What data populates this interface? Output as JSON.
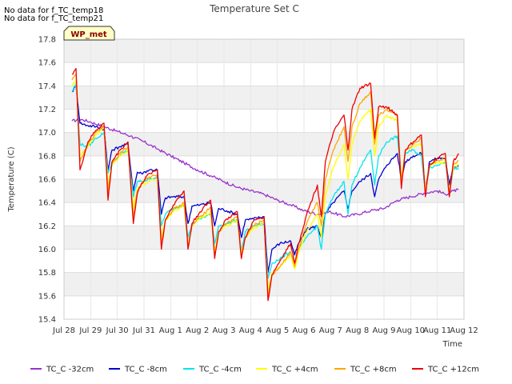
{
  "notes": [
    "No data for f_TC_temp18",
    "No data for f_TC_temp21"
  ],
  "chart_data": {
    "type": "line",
    "title": "Temperature Set C",
    "xlabel": "Time",
    "ylabel": "Temperature (C)",
    "badge": "WP_met",
    "ylim": [
      15.4,
      17.8
    ],
    "yticks": [
      15.4,
      15.6,
      15.8,
      16.0,
      16.2,
      16.4,
      16.6,
      16.8,
      17.0,
      17.2,
      17.4,
      17.6,
      17.8
    ],
    "ytick_labels": [
      "15.4",
      "15.6",
      "15.8",
      "16.0",
      "16.2",
      "16.4",
      "16.6",
      "16.8",
      "17.0",
      "17.2",
      "17.4",
      "17.6",
      "17.8"
    ],
    "xlim": [
      0,
      15
    ],
    "xticks": [
      0,
      1,
      2,
      3,
      4,
      5,
      6,
      7,
      8,
      9,
      10,
      11,
      12,
      13,
      14,
      15
    ],
    "xtick_labels": [
      "Jul 28",
      "Jul 29",
      "Jul 30",
      "Jul 31",
      "Aug 1",
      "Aug 2",
      "Aug 3",
      "Aug 4",
      "Aug 5",
      "Aug 6",
      "Aug 7",
      "Aug 8",
      "Aug 9",
      "Aug 10",
      "Aug 11",
      "Aug 12"
    ],
    "grid": true,
    "legend_position": "bottom",
    "series": [
      {
        "name": "TC_C -32cm",
        "color": "#9932cc",
        "x": [
          0.3,
          0.7,
          1.0,
          1.5,
          2.0,
          2.5,
          3.0,
          3.5,
          4.0,
          4.5,
          5.0,
          5.5,
          6.0,
          6.5,
          7.0,
          7.5,
          8.0,
          8.5,
          9.0,
          9.5,
          10.0,
          10.5,
          11.0,
          11.5,
          12.0,
          12.5,
          13.0,
          13.5,
          14.0,
          14.3,
          14.6,
          14.8
        ],
        "y": [
          17.1,
          17.11,
          17.09,
          17.05,
          17.01,
          16.97,
          16.92,
          16.86,
          16.8,
          16.74,
          16.68,
          16.63,
          16.58,
          16.53,
          16.5,
          16.47,
          16.42,
          16.38,
          16.33,
          16.3,
          16.32,
          16.28,
          16.3,
          16.33,
          16.35,
          16.42,
          16.45,
          16.48,
          16.5,
          16.47,
          16.5,
          16.51
        ]
      },
      {
        "name": "TC_C -8cm",
        "color": "#0000cd",
        "x": [
          0.3,
          0.45,
          0.6,
          0.9,
          1.2,
          1.5,
          1.65,
          1.8,
          2.1,
          2.4,
          2.6,
          2.75,
          2.9,
          3.2,
          3.5,
          3.65,
          3.8,
          4.1,
          4.5,
          4.65,
          4.8,
          5.1,
          5.5,
          5.65,
          5.8,
          6.1,
          6.5,
          6.65,
          6.8,
          7.1,
          7.5,
          7.65,
          7.8,
          8.1,
          8.5,
          8.65,
          8.8,
          9.1,
          9.5,
          9.65,
          9.8,
          10.1,
          10.5,
          10.65,
          10.8,
          11.1,
          11.5,
          11.65,
          11.8,
          12.1,
          12.5,
          12.65,
          12.8,
          13.1,
          13.4,
          13.55,
          13.7,
          14.0,
          14.3,
          14.45,
          14.6,
          14.8
        ],
        "y": [
          17.35,
          17.4,
          17.08,
          17.06,
          17.05,
          17.03,
          16.68,
          16.85,
          16.88,
          16.9,
          16.5,
          16.66,
          16.65,
          16.68,
          16.68,
          16.3,
          16.44,
          16.45,
          16.45,
          16.22,
          16.37,
          16.38,
          16.4,
          16.2,
          16.35,
          16.33,
          16.3,
          16.1,
          16.25,
          16.26,
          16.28,
          15.8,
          16.0,
          16.05,
          16.07,
          15.95,
          16.05,
          16.17,
          16.2,
          16.1,
          16.3,
          16.4,
          16.5,
          16.35,
          16.5,
          16.58,
          16.65,
          16.45,
          16.6,
          16.72,
          16.82,
          16.6,
          16.75,
          16.8,
          16.82,
          16.5,
          16.75,
          16.78,
          16.78,
          16.55,
          16.7,
          16.72
        ]
      },
      {
        "name": "TC_C -4cm",
        "color": "#00e5ee",
        "x": [
          0.3,
          0.45,
          0.6,
          0.9,
          1.2,
          1.5,
          1.65,
          1.8,
          2.1,
          2.4,
          2.6,
          2.75,
          2.9,
          3.2,
          3.5,
          3.65,
          3.8,
          4.1,
          4.5,
          4.65,
          4.8,
          5.1,
          5.5,
          5.65,
          5.8,
          6.1,
          6.5,
          6.65,
          6.8,
          7.1,
          7.5,
          7.65,
          7.8,
          8.1,
          8.5,
          8.65,
          8.8,
          9.1,
          9.5,
          9.65,
          9.8,
          10.1,
          10.5,
          10.65,
          10.8,
          11.1,
          11.5,
          11.65,
          11.8,
          12.1,
          12.5,
          12.65,
          12.8,
          13.1,
          13.4,
          13.55,
          13.7,
          14.0,
          14.3,
          14.45,
          14.6,
          14.8
        ],
        "y": [
          17.35,
          17.42,
          16.9,
          16.88,
          16.95,
          17.0,
          16.65,
          16.75,
          16.8,
          16.85,
          16.45,
          16.58,
          16.58,
          16.6,
          16.62,
          16.2,
          16.3,
          16.35,
          16.38,
          16.1,
          16.22,
          16.26,
          16.3,
          16.05,
          16.2,
          16.22,
          16.25,
          15.98,
          16.15,
          16.2,
          16.22,
          15.75,
          15.88,
          15.92,
          15.98,
          15.88,
          16.0,
          16.1,
          16.2,
          16.0,
          16.3,
          16.45,
          16.58,
          16.3,
          16.55,
          16.7,
          16.85,
          16.55,
          16.8,
          16.92,
          16.97,
          16.6,
          16.82,
          16.85,
          16.8,
          16.5,
          16.7,
          16.72,
          16.75,
          16.5,
          16.68,
          16.7
        ]
      },
      {
        "name": "TC_C +4cm",
        "color": "#ffff00",
        "x": [
          0.3,
          0.45,
          0.6,
          0.9,
          1.2,
          1.5,
          1.65,
          1.8,
          2.1,
          2.4,
          2.6,
          2.75,
          2.9,
          3.2,
          3.5,
          3.65,
          3.8,
          4.1,
          4.5,
          4.65,
          4.8,
          5.1,
          5.5,
          5.65,
          5.8,
          6.1,
          6.5,
          6.65,
          6.8,
          7.1,
          7.5,
          7.65,
          7.8,
          8.1,
          8.5,
          8.65,
          8.8,
          9.1,
          9.5,
          9.65,
          9.8,
          10.1,
          10.5,
          10.65,
          10.8,
          11.1,
          11.5,
          11.65,
          11.8,
          12.1,
          12.5,
          12.65,
          12.8,
          13.1,
          13.4,
          13.55,
          13.7,
          14.0,
          14.3,
          14.45,
          14.6,
          14.8
        ],
        "y": [
          17.4,
          17.45,
          16.8,
          16.88,
          16.98,
          17.05,
          16.55,
          16.72,
          16.8,
          16.85,
          16.35,
          16.52,
          16.55,
          16.58,
          16.6,
          16.1,
          16.25,
          16.32,
          16.38,
          16.05,
          16.2,
          16.26,
          16.32,
          15.98,
          16.15,
          16.2,
          16.25,
          15.95,
          16.1,
          16.18,
          16.22,
          15.65,
          15.8,
          15.85,
          15.95,
          15.83,
          15.98,
          16.15,
          16.3,
          16.1,
          16.45,
          16.7,
          16.9,
          16.6,
          16.9,
          17.1,
          17.2,
          16.8,
          17.05,
          17.15,
          17.1,
          16.6,
          16.85,
          16.88,
          16.9,
          16.5,
          16.72,
          16.74,
          16.75,
          16.5,
          16.7,
          16.72
        ]
      },
      {
        "name": "TC_C +8cm",
        "color": "#ffa500",
        "x": [
          0.3,
          0.45,
          0.6,
          0.9,
          1.2,
          1.5,
          1.65,
          1.8,
          2.1,
          2.4,
          2.6,
          2.75,
          2.9,
          3.2,
          3.5,
          3.65,
          3.8,
          4.1,
          4.5,
          4.65,
          4.8,
          5.1,
          5.5,
          5.65,
          5.8,
          6.1,
          6.5,
          6.65,
          6.8,
          7.1,
          7.5,
          7.65,
          7.8,
          8.1,
          8.5,
          8.65,
          8.8,
          9.1,
          9.5,
          9.65,
          9.8,
          10.1,
          10.5,
          10.65,
          10.8,
          11.1,
          11.5,
          11.65,
          11.8,
          12.1,
          12.5,
          12.65,
          12.8,
          13.1,
          13.4,
          13.55,
          13.7,
          14.0,
          14.3,
          14.45,
          14.6,
          14.8
        ],
        "y": [
          17.45,
          17.5,
          16.75,
          16.9,
          17.0,
          17.06,
          16.5,
          16.74,
          16.82,
          16.88,
          16.28,
          16.5,
          16.56,
          16.62,
          16.64,
          16.05,
          16.25,
          16.34,
          16.4,
          16.02,
          16.2,
          16.28,
          16.36,
          15.95,
          16.15,
          16.22,
          16.28,
          15.92,
          16.1,
          16.2,
          16.25,
          15.6,
          15.78,
          15.85,
          15.98,
          15.85,
          16.0,
          16.22,
          16.4,
          16.2,
          16.6,
          16.85,
          17.05,
          16.75,
          17.05,
          17.25,
          17.35,
          16.9,
          17.15,
          17.2,
          17.15,
          16.58,
          16.85,
          16.9,
          16.95,
          16.48,
          16.72,
          16.76,
          16.78,
          16.48,
          16.72,
          16.76
        ]
      },
      {
        "name": "TC_C +12cm",
        "color": "#ee0000",
        "x": [
          0.3,
          0.45,
          0.6,
          0.9,
          1.2,
          1.5,
          1.65,
          1.8,
          2.1,
          2.4,
          2.6,
          2.75,
          2.9,
          3.2,
          3.5,
          3.65,
          3.8,
          4.1,
          4.5,
          4.65,
          4.8,
          5.1,
          5.5,
          5.65,
          5.8,
          6.1,
          6.5,
          6.65,
          6.8,
          7.1,
          7.5,
          7.65,
          7.8,
          8.1,
          8.5,
          8.65,
          8.8,
          9.1,
          9.5,
          9.65,
          9.8,
          10.1,
          10.5,
          10.65,
          10.8,
          11.1,
          11.5,
          11.65,
          11.8,
          12.1,
          12.5,
          12.65,
          12.8,
          13.1,
          13.4,
          13.55,
          13.7,
          14.0,
          14.3,
          14.45,
          14.6,
          14.8
        ],
        "y": [
          17.5,
          17.55,
          16.68,
          16.92,
          17.02,
          17.08,
          16.42,
          16.75,
          16.85,
          16.92,
          16.22,
          16.48,
          16.56,
          16.65,
          16.68,
          16.0,
          16.25,
          16.38,
          16.5,
          16.0,
          16.22,
          16.32,
          16.42,
          15.92,
          16.15,
          16.26,
          16.32,
          15.92,
          16.1,
          16.24,
          16.28,
          15.56,
          15.78,
          15.9,
          16.05,
          15.88,
          16.05,
          16.3,
          16.55,
          16.28,
          16.75,
          17.0,
          17.15,
          16.85,
          17.2,
          17.38,
          17.42,
          16.95,
          17.22,
          17.22,
          17.15,
          16.52,
          16.85,
          16.92,
          16.98,
          16.45,
          16.72,
          16.78,
          16.82,
          16.45,
          16.75,
          16.82
        ]
      }
    ]
  }
}
